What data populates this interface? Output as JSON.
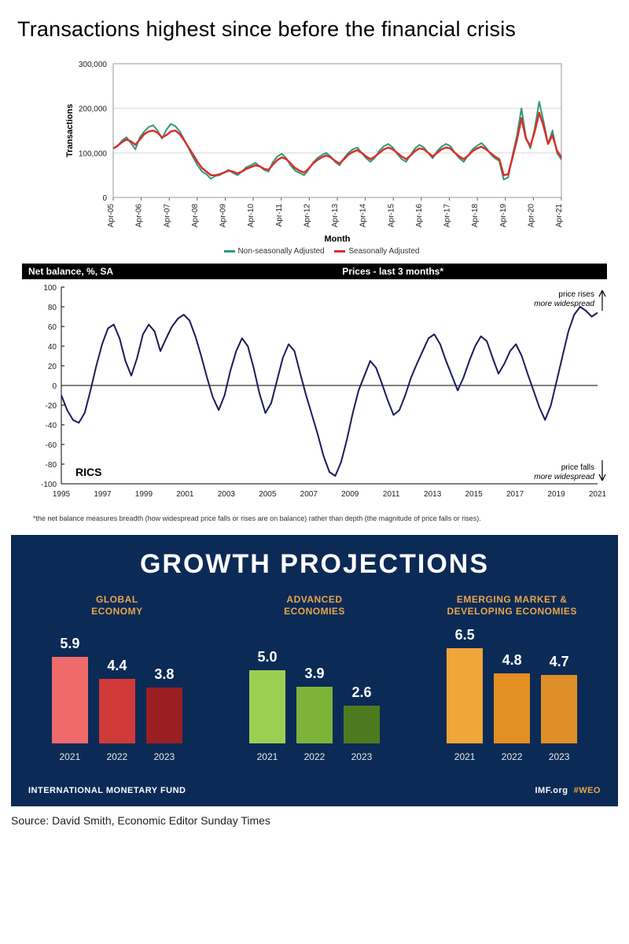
{
  "title": "Transactions highest since before the financial crisis",
  "source": "Source:  David Smith, Economic Editor Sunday Times",
  "chart1": {
    "type": "line",
    "ylabel": "Transactions",
    "xlabel": "Month",
    "ylim": [
      0,
      300000
    ],
    "ytick_step": 100000,
    "yticks": [
      "0",
      "100,000",
      "200,000",
      "300,000"
    ],
    "xticks": [
      "Apr-05",
      "Apr-06",
      "Apr-07",
      "Apr-08",
      "Apr-09",
      "Apr-10",
      "Apr-11",
      "Apr-12",
      "Apr-13",
      "Apr-14",
      "Apr-15",
      "Apr-16",
      "Apr-17",
      "Apr-18",
      "Apr-19",
      "Apr-20",
      "Apr-21"
    ],
    "series": [
      {
        "name": "Non-seasonally Adjusted",
        "color": "#2e9b7a",
        "width": 2,
        "y": [
          110,
          115,
          128,
          135,
          122,
          108,
          135,
          148,
          158,
          162,
          150,
          132,
          152,
          165,
          160,
          148,
          130,
          110,
          90,
          72,
          58,
          52,
          42,
          48,
          50,
          56,
          62,
          55,
          50,
          58,
          68,
          72,
          78,
          70,
          62,
          58,
          80,
          92,
          98,
          88,
          72,
          60,
          55,
          50,
          62,
          78,
          88,
          95,
          100,
          92,
          80,
          72,
          88,
          100,
          108,
          112,
          100,
          88,
          80,
          90,
          105,
          115,
          120,
          112,
          98,
          86,
          80,
          95,
          110,
          118,
          112,
          100,
          88,
          104,
          114,
          120,
          115,
          100,
          88,
          80,
          95,
          108,
          116,
          122,
          112,
          98,
          88,
          82,
          40,
          45,
          95,
          140,
          200,
          135,
          110,
          155,
          215,
          170,
          120,
          150,
          100,
          85
        ]
      },
      {
        "name": "Seasonally Adjusted",
        "color": "#d9302c",
        "width": 2.5,
        "y": [
          110,
          116,
          124,
          130,
          126,
          118,
          130,
          142,
          148,
          150,
          145,
          135,
          140,
          148,
          150,
          142,
          128,
          112,
          96,
          80,
          66,
          58,
          50,
          50,
          52,
          56,
          60,
          58,
          54,
          58,
          64,
          68,
          72,
          70,
          64,
          62,
          74,
          84,
          90,
          86,
          76,
          66,
          60,
          56,
          64,
          76,
          84,
          90,
          94,
          90,
          82,
          76,
          86,
          96,
          102,
          106,
          100,
          92,
          86,
          92,
          100,
          108,
          112,
          108,
          100,
          92,
          86,
          94,
          104,
          110,
          108,
          100,
          92,
          100,
          108,
          112,
          110,
          100,
          92,
          86,
          94,
          104,
          110,
          114,
          108,
          100,
          92,
          86,
          50,
          52,
          90,
          130,
          178,
          132,
          115,
          148,
          190,
          160,
          120,
          140,
          105,
          90
        ]
      }
    ],
    "legend": [
      "Non-seasonally Adjusted",
      "Seasonally Adjusted"
    ],
    "legend_colors": [
      "#2e9b7a",
      "#d9302c"
    ],
    "background": "#ffffff",
    "grid_color": "#d8d8d8"
  },
  "chart2": {
    "type": "line",
    "header_left": "Net balance, %, SA",
    "header_right": "Prices - last 3 months*",
    "ylim": [
      -100,
      100
    ],
    "ytick_step": 20,
    "yticks": [
      "100",
      "80",
      "60",
      "40",
      "20",
      "0",
      "-20",
      "-40",
      "-60",
      "-80",
      "-100"
    ],
    "xticks": [
      "1995",
      "1997",
      "1999",
      "2001",
      "2003",
      "2005",
      "2007",
      "2009",
      "2011",
      "2013",
      "2015",
      "2017",
      "2019",
      "2021"
    ],
    "note_top": "price rises\nmore widespread",
    "note_bottom": "price falls\nmore widespread",
    "rics_label": "RICS",
    "footnote": "*the net balance measures breadth (how widespread price falls or rises are on balance) rather than depth (the magnitude of price falls or rises).",
    "series_color": "#1b1c5a",
    "series_width": 2,
    "y": [
      -10,
      -25,
      -35,
      -38,
      -28,
      -5,
      20,
      42,
      58,
      62,
      48,
      25,
      10,
      28,
      52,
      62,
      55,
      35,
      48,
      60,
      68,
      72,
      66,
      50,
      30,
      8,
      -12,
      -25,
      -10,
      15,
      35,
      48,
      40,
      18,
      -8,
      -28,
      -18,
      5,
      28,
      42,
      35,
      12,
      -10,
      -30,
      -50,
      -72,
      -88,
      -92,
      -78,
      -55,
      -28,
      -5,
      10,
      25,
      18,
      2,
      -15,
      -30,
      -25,
      -10,
      8,
      22,
      35,
      48,
      52,
      42,
      25,
      10,
      -5,
      8,
      25,
      40,
      50,
      45,
      28,
      12,
      22,
      35,
      42,
      30,
      12,
      -5,
      -22,
      -35,
      -20,
      5,
      30,
      55,
      72,
      80,
      76,
      70,
      74
    ]
  },
  "imf": {
    "title": "GROWTH PROJECTIONS",
    "background": "#0c2a56",
    "max_value": 7.0,
    "groups": [
      {
        "title": "GLOBAL\nECONOMY",
        "title_color": "#e7a64b",
        "bars": [
          {
            "year": "2021",
            "value": 5.9,
            "color": "#ef6b6b"
          },
          {
            "year": "2022",
            "value": 4.4,
            "color": "#d13a38"
          },
          {
            "year": "2023",
            "value": 3.8,
            "color": "#9a1f22"
          }
        ]
      },
      {
        "title": "ADVANCED\nECONOMIES",
        "title_color": "#e7a64b",
        "bars": [
          {
            "year": "2021",
            "value": 5.0,
            "color": "#9bcf52"
          },
          {
            "year": "2022",
            "value": 3.9,
            "color": "#7eb33a"
          },
          {
            "year": "2023",
            "value": 2.6,
            "color": "#4e7a1f"
          }
        ]
      },
      {
        "title": "EMERGING MARKET &\nDEVELOPING ECONOMIES",
        "title_color": "#e7a64b",
        "bars": [
          {
            "year": "2021",
            "value": 6.5,
            "color": "#f0a63a"
          },
          {
            "year": "2022",
            "value": 4.8,
            "color": "#e38f22"
          },
          {
            "year": "2023",
            "value": 4.7,
            "color": "#df8f28"
          }
        ]
      }
    ],
    "footer_left": "INTERNATIONAL MONETARY FUND",
    "footer_right_a": "IMF.org",
    "footer_right_b": "#WEO",
    "footer_right_b_color": "#e7a64b"
  }
}
